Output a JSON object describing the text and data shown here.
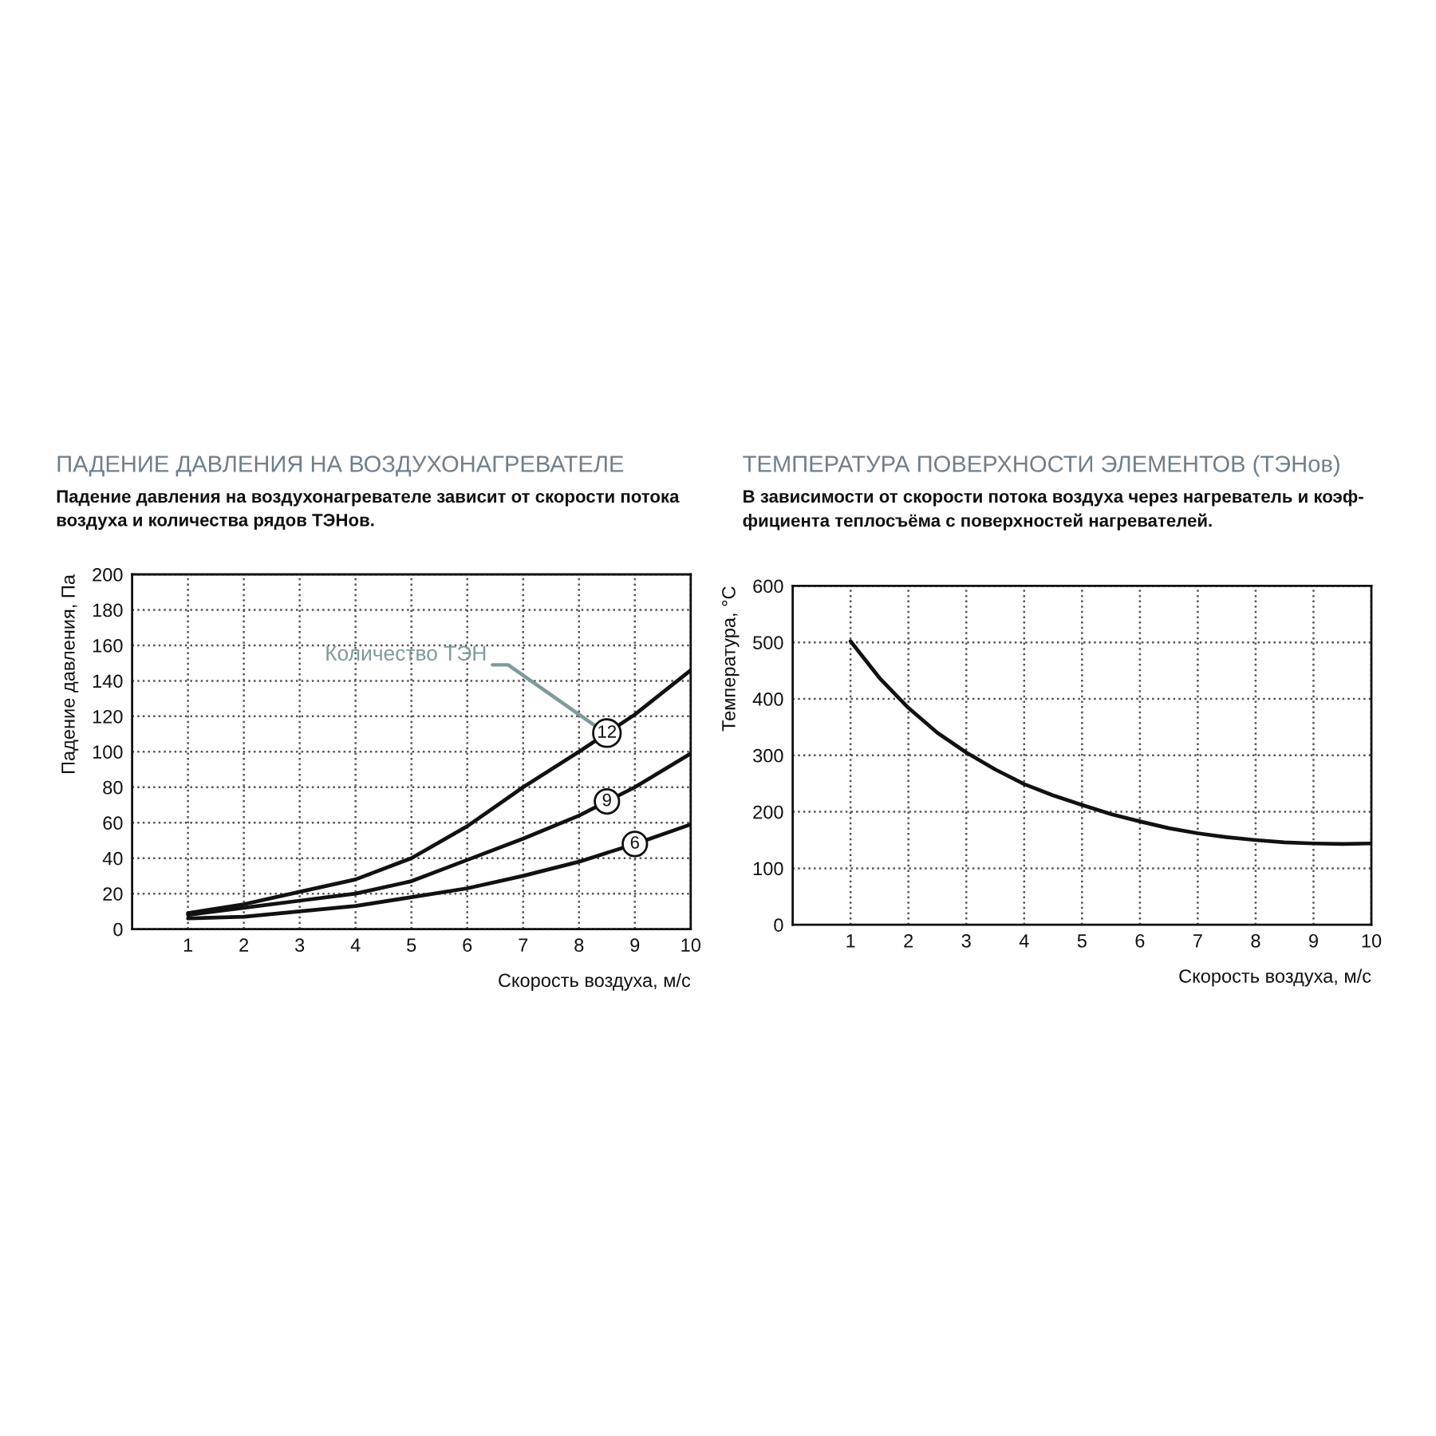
{
  "chart_data": [
    {
      "type": "line",
      "title": "ПАДЕНИЕ ДАВЛЕНИЯ НА ВОЗДУХОНАГРЕВАТЕЛЕ",
      "subtitle": "Падение давления на воздухонагревателе зависит от скорости потока\nвоздуха и количества рядов ТЭНов.",
      "xlabel": "Скорость воздуха, м/с",
      "ylabel": "Падение давления, Па",
      "x": [
        1,
        2,
        3,
        4,
        5,
        6,
        7,
        8,
        9,
        10
      ],
      "series": [
        {
          "name": "12",
          "color": "#111111",
          "values": [
            9,
            14,
            21,
            28,
            40,
            58,
            80,
            100,
            121,
            146
          ]
        },
        {
          "name": "9",
          "color": "#111111",
          "values": [
            8,
            12,
            16,
            20,
            27,
            39,
            51,
            64,
            80,
            99
          ]
        },
        {
          "name": "6",
          "color": "#111111",
          "values": [
            6,
            7,
            10,
            13,
            18,
            23,
            30,
            38,
            48,
            59
          ]
        }
      ],
      "xlim": [
        0,
        10
      ],
      "xticks": [
        1,
        2,
        3,
        4,
        5,
        6,
        7,
        8,
        9,
        10
      ],
      "ylim": [
        0,
        200
      ],
      "yticks": [
        0,
        20,
        40,
        60,
        80,
        100,
        120,
        140,
        160,
        180,
        200
      ],
      "grid": true,
      "line_style": "solid",
      "annotations": [
        {
          "text": "Количество ТЭН",
          "x": 8.5,
          "y": 110
        }
      ]
    },
    {
      "type": "line",
      "title": "ТЕМПЕРАТУРА ПОВЕРХНОСТИ ЭЛЕМЕНТОВ (ТЭНов)",
      "subtitle": "В зависимости от скорости потока воздуха через нагреватель и коэф-\nфициента теплосъёма с поверхностей нагревателей.",
      "xlabel": "Скорость воздуха, м/с",
      "ylabel": "Температура, °C",
      "x": [
        1,
        1.5,
        2,
        2.5,
        3,
        3.5,
        4,
        4.5,
        5,
        5.5,
        6,
        6.5,
        7,
        7.5,
        8,
        8.5,
        9,
        9.5,
        10
      ],
      "series": [
        {
          "color": "#111111",
          "values": [
            502,
            437,
            384,
            340,
            305,
            275,
            249,
            229,
            212,
            196,
            183,
            171,
            162,
            155,
            150,
            146,
            144,
            143,
            144
          ]
        }
      ],
      "xlim": [
        0,
        10
      ],
      "xticks": [
        1,
        2,
        3,
        4,
        5,
        6,
        7,
        8,
        9,
        10
      ],
      "ylim": [
        0,
        600
      ],
      "yticks": [
        0,
        100,
        200,
        300,
        400,
        500,
        600
      ],
      "grid": true,
      "line_style": "solid"
    }
  ]
}
